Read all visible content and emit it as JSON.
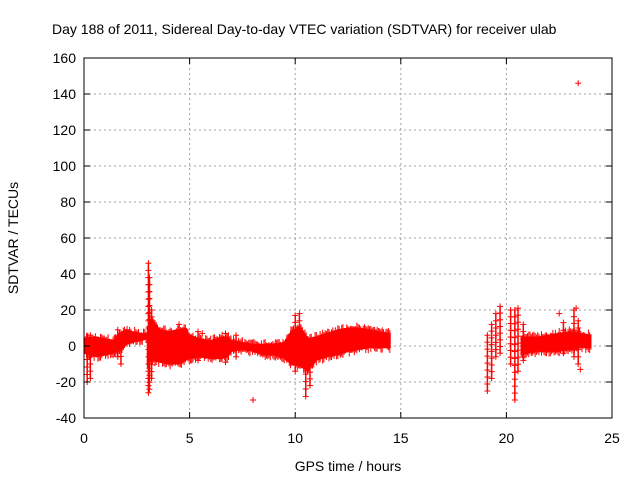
{
  "chart_data": {
    "type": "scatter",
    "title": "Day 188 of 2011, Sidereal Day-to-day VTEC variation (SDTVAR) for receiver ulab",
    "xlabel": "GPS time / hours",
    "ylabel": "SDTVAR / TECUs",
    "xlim": [
      0,
      25
    ],
    "ylim": [
      -40,
      160
    ],
    "xticks": [
      0,
      5,
      10,
      15,
      20,
      25
    ],
    "yticks": [
      -40,
      -20,
      0,
      20,
      40,
      60,
      80,
      100,
      120,
      140,
      160
    ],
    "grid": true,
    "legend": "none",
    "marker": "plus",
    "color": "#ff0000",
    "envelope_segments": [
      [
        [
          0.0,
          -4
        ],
        [
          0.3,
          -5
        ],
        [
          0.6,
          -6
        ],
        [
          1.0,
          -5
        ],
        [
          1.4,
          -4
        ],
        [
          1.6,
          -3
        ],
        [
          1.8,
          -2
        ],
        [
          2.0,
          1
        ],
        [
          2.3,
          2
        ],
        [
          2.7,
          3
        ],
        [
          3.0,
          4
        ]
      ],
      [
        [
          0.0,
          4
        ],
        [
          0.3,
          5
        ],
        [
          0.6,
          5
        ],
        [
          1.0,
          4
        ],
        [
          1.4,
          3
        ],
        [
          1.6,
          6
        ],
        [
          1.8,
          8
        ],
        [
          2.0,
          9
        ],
        [
          2.3,
          8
        ],
        [
          2.7,
          7
        ],
        [
          3.0,
          7
        ]
      ],
      [
        [
          3.0,
          -10
        ],
        [
          3.2,
          -8
        ],
        [
          3.6,
          -9
        ],
        [
          4.0,
          -10
        ],
        [
          4.5,
          -10
        ],
        [
          4.8,
          -8
        ],
        [
          5.0,
          -7
        ],
        [
          5.5,
          -6
        ],
        [
          6.0,
          -7
        ],
        [
          6.5,
          -7
        ],
        [
          6.8,
          -6
        ],
        [
          7.0,
          -3
        ],
        [
          7.5,
          -2
        ],
        [
          8.0,
          -3
        ],
        [
          8.5,
          -5
        ],
        [
          9.0,
          -5
        ],
        [
          9.5,
          -7
        ],
        [
          9.8,
          -10
        ]
      ],
      [
        [
          3.0,
          10
        ],
        [
          3.2,
          15
        ],
        [
          3.6,
          9
        ],
        [
          4.0,
          8
        ],
        [
          4.5,
          9
        ],
        [
          4.8,
          10
        ],
        [
          5.0,
          6
        ],
        [
          5.5,
          4
        ],
        [
          6.0,
          3
        ],
        [
          6.5,
          5
        ],
        [
          6.8,
          5
        ],
        [
          7.0,
          3
        ],
        [
          7.5,
          2
        ],
        [
          8.0,
          1
        ],
        [
          8.5,
          1
        ],
        [
          9.0,
          1
        ],
        [
          9.5,
          2
        ],
        [
          9.8,
          8
        ]
      ],
      [
        [
          9.8,
          -10
        ],
        [
          10.2,
          -11
        ],
        [
          10.6,
          -14
        ],
        [
          11.0,
          -8
        ],
        [
          11.5,
          -6
        ],
        [
          12.0,
          -5
        ],
        [
          12.5,
          -3
        ],
        [
          13.0,
          -2
        ],
        [
          13.5,
          -1
        ],
        [
          14.0,
          -1
        ],
        [
          14.5,
          -1
        ]
      ],
      [
        [
          9.8,
          8
        ],
        [
          10.2,
          11
        ],
        [
          10.6,
          4
        ],
        [
          11.0,
          5
        ],
        [
          11.5,
          7
        ],
        [
          12.0,
          9
        ],
        [
          12.5,
          10
        ],
        [
          13.0,
          10
        ],
        [
          13.5,
          9
        ],
        [
          14.0,
          8
        ],
        [
          14.5,
          7
        ]
      ],
      [
        [
          20.7,
          -5
        ],
        [
          21.0,
          -4
        ],
        [
          21.5,
          -3
        ],
        [
          22.0,
          -3
        ],
        [
          22.5,
          -3
        ],
        [
          23.0,
          -2
        ],
        [
          23.5,
          -1
        ],
        [
          24.0,
          -1
        ]
      ],
      [
        [
          20.7,
          5
        ],
        [
          21.0,
          5
        ],
        [
          21.5,
          5
        ],
        [
          22.0,
          6
        ],
        [
          22.5,
          7
        ],
        [
          23.0,
          8
        ],
        [
          23.5,
          7
        ],
        [
          24.0,
          6
        ]
      ]
    ],
    "spikes": [
      [
        0.15,
        -20,
        5
      ],
      [
        0.3,
        -18,
        6
      ],
      [
        1.6,
        -6,
        9
      ],
      [
        1.75,
        -10,
        7
      ],
      [
        3.05,
        -26,
        46
      ],
      [
        3.1,
        -24,
        38
      ],
      [
        3.2,
        -18,
        20
      ],
      [
        4.5,
        -8,
        12
      ],
      [
        5.4,
        -8,
        8
      ],
      [
        6.7,
        -9,
        7
      ],
      [
        7.2,
        -6,
        6
      ],
      [
        10.0,
        -14,
        17
      ],
      [
        10.2,
        -10,
        18
      ],
      [
        10.5,
        -28,
        5
      ],
      [
        10.7,
        -22,
        4
      ],
      [
        19.1,
        -25,
        6
      ],
      [
        19.3,
        -18,
        12
      ],
      [
        19.5,
        -6,
        18
      ],
      [
        19.7,
        -4,
        22
      ],
      [
        20.2,
        -10,
        20
      ],
      [
        20.4,
        -30,
        20
      ],
      [
        20.55,
        -14,
        21
      ],
      [
        20.8,
        -8,
        12
      ],
      [
        22.7,
        -4,
        13
      ],
      [
        23.2,
        -6,
        20
      ],
      [
        23.4,
        -10,
        14
      ]
    ],
    "outliers": [
      [
        8.0,
        -30
      ],
      [
        23.4,
        146
      ],
      [
        23.5,
        -13
      ],
      [
        22.5,
        18
      ],
      [
        5.6,
        7
      ],
      [
        23.3,
        21
      ]
    ],
    "gap": [
      14.6,
      19.0
    ]
  }
}
